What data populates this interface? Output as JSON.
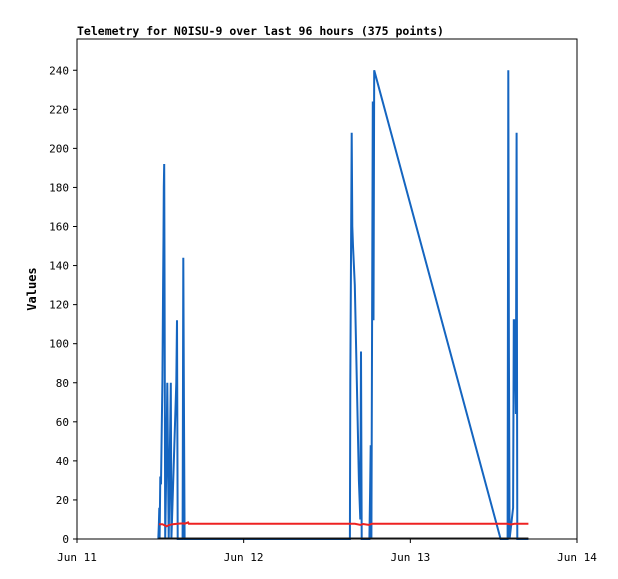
{
  "chart_data": {
    "type": "line",
    "title": "Telemetry for N0ISU-9 over last 96 hours (375 points)",
    "xlabel": "",
    "ylabel": "Values",
    "x_ticks": [
      "Jun 11",
      "Jun 12",
      "Jun 13",
      "Jun 14"
    ],
    "y_ticks": [
      0,
      20,
      40,
      60,
      80,
      100,
      120,
      140,
      160,
      180,
      200,
      220,
      240
    ],
    "xlim_hours": [
      0,
      72
    ],
    "ylim": [
      0,
      256
    ],
    "grid": false,
    "legend": "none",
    "series": [
      {
        "color": "#1565c0",
        "points": [
          [
            11.7,
            0
          ],
          [
            11.8,
            8
          ],
          [
            11.85,
            16
          ],
          [
            11.9,
            0
          ],
          [
            12.0,
            32
          ],
          [
            12.1,
            28
          ],
          [
            12.2,
            55
          ],
          [
            12.3,
            80
          ],
          [
            12.4,
            130
          ],
          [
            12.45,
            155
          ],
          [
            12.5,
            180
          ],
          [
            12.55,
            192
          ],
          [
            12.6,
            140
          ],
          [
            12.7,
            0
          ],
          [
            12.9,
            48
          ],
          [
            13.0,
            80
          ],
          [
            13.1,
            40
          ],
          [
            13.2,
            0
          ],
          [
            13.5,
            80
          ],
          [
            13.6,
            0
          ],
          [
            14.3,
            80
          ],
          [
            14.4,
            112
          ],
          [
            14.5,
            0
          ],
          [
            15.2,
            0
          ],
          [
            15.3,
            144
          ],
          [
            15.4,
            72
          ],
          [
            15.5,
            0
          ],
          [
            39.3,
            0
          ],
          [
            39.35,
            80
          ],
          [
            39.45,
            144
          ],
          [
            39.55,
            208
          ],
          [
            39.65,
            160
          ],
          [
            39.75,
            150
          ],
          [
            40.0,
            130
          ],
          [
            40.6,
            30
          ],
          [
            40.8,
            10
          ],
          [
            40.9,
            96
          ],
          [
            41.0,
            0
          ],
          [
            42.1,
            0
          ],
          [
            42.2,
            24
          ],
          [
            42.3,
            48
          ],
          [
            42.4,
            0
          ],
          [
            42.6,
            224
          ],
          [
            42.7,
            112
          ],
          [
            42.8,
            240
          ],
          [
            61.0,
            0
          ],
          [
            62.0,
            0
          ],
          [
            62.1,
            240
          ],
          [
            62.2,
            96
          ],
          [
            62.3,
            0
          ],
          [
            62.8,
            16
          ],
          [
            62.9,
            112
          ],
          [
            63.0,
            112
          ],
          [
            63.2,
            64
          ],
          [
            63.3,
            208
          ],
          [
            63.4,
            0
          ],
          [
            65.0,
            0
          ]
        ]
      },
      {
        "color": "#ee2222",
        "points": [
          [
            11.8,
            7.6
          ],
          [
            12.3,
            7.6
          ],
          [
            12.9,
            6.5
          ],
          [
            13.3,
            7.2
          ],
          [
            13.8,
            7.6
          ],
          [
            14.6,
            7.9
          ],
          [
            15.4,
            8.0
          ],
          [
            15.5,
            7.8
          ],
          [
            16.0,
            8.5
          ],
          [
            16.1,
            7.8
          ],
          [
            20.0,
            7.8
          ],
          [
            39.0,
            7.8
          ],
          [
            40.0,
            7.8
          ],
          [
            40.8,
            7.2
          ],
          [
            41.2,
            7.7
          ],
          [
            42.0,
            7.2
          ],
          [
            42.5,
            7.8
          ],
          [
            50.0,
            7.8
          ],
          [
            60.0,
            7.8
          ],
          [
            62.0,
            7.8
          ],
          [
            62.5,
            7.4
          ],
          [
            63.0,
            7.8
          ],
          [
            65.0,
            7.8
          ]
        ]
      },
      {
        "color": "#222222",
        "points": [
          [
            11.7,
            0.4
          ],
          [
            20.0,
            0.4
          ],
          [
            30.0,
            0.4
          ],
          [
            40.0,
            0.4
          ],
          [
            50.0,
            0.4
          ],
          [
            60.0,
            0.4
          ],
          [
            65.0,
            0.4
          ]
        ]
      }
    ]
  }
}
